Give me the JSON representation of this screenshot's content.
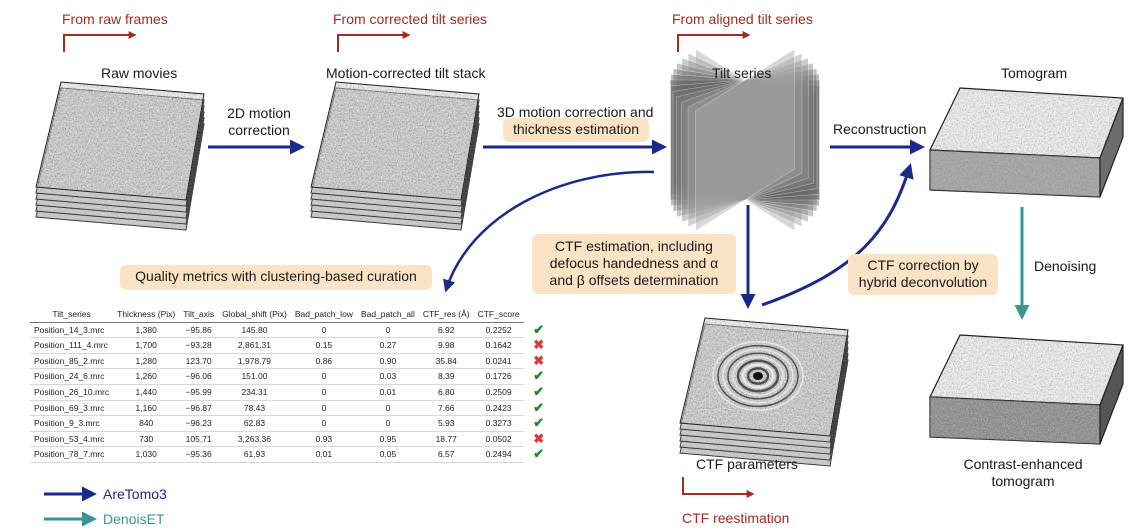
{
  "sources": {
    "raw": "From raw frames",
    "corrected": "From corrected tilt series",
    "aligned": "From aligned tilt series",
    "ctf_reest": "CTF reestimation"
  },
  "stages": {
    "raw_movies": "Raw movies",
    "motion_stack": "Motion-corrected tilt stack",
    "tilt_series": "Tilt series",
    "tomogram": "Tomogram",
    "ctf_params": "CTF parameters",
    "enhanced_line1": "Contrast-enhanced",
    "enhanced_line2": "tomogram"
  },
  "steps": {
    "motion2d_line1": "2D motion",
    "motion2d_line2": "correction",
    "motion3d_line1": "3D motion correction and",
    "motion3d_line2": "thickness estimation",
    "reconstruction": "Reconstruction",
    "denoising": "Denoising",
    "ctf_est_line1": "CTF estimation, including",
    "ctf_est_line2": "defocus handedness and α",
    "ctf_est_line3": "and β offsets determination",
    "ctf_corr_line1": "CTF correction by",
    "ctf_corr_line2": "hybrid deconvolution",
    "quality": "Quality metrics with clustering-based curation"
  },
  "table": {
    "headers": [
      "Tilt_series",
      "Thickness (Pix)",
      "Tilt_axis",
      "Global_shift (Pix)",
      "Bad_patch_low",
      "Bad_patch_all",
      "CTF_res (Å)",
      "CTF_score"
    ],
    "rows": [
      {
        "cells": [
          "Position_14_3.mrc",
          "1,380",
          "−95.86",
          "145.80",
          "0",
          "0",
          "6.92",
          "0.2252"
        ],
        "status": "accept"
      },
      {
        "cells": [
          "Position_111_4.mrc",
          "1,700",
          "−93.28",
          "2,861.31",
          "0.15",
          "0.27",
          "9.98",
          "0.1642"
        ],
        "status": "reject"
      },
      {
        "cells": [
          "Position_85_2.mrc",
          "1,280",
          "123.70",
          "1,978.79",
          "0.86",
          "0.90",
          "35.84",
          "0.0241"
        ],
        "status": "reject"
      },
      {
        "cells": [
          "Position_24_6.mrc",
          "1,260",
          "−96.06",
          "151.00",
          "0",
          "0.03",
          "8.39",
          "0.1726"
        ],
        "status": "accept"
      },
      {
        "cells": [
          "Position_26_10.mrc",
          "1,440",
          "−95.99",
          "234.31",
          "0",
          "0.01",
          "6.80",
          "0.2509"
        ],
        "status": "accept"
      },
      {
        "cells": [
          "Position_69_3.mrc",
          "1,160",
          "−96.87",
          "78.43",
          "0",
          "0",
          "7.66",
          "0.2423"
        ],
        "status": "accept"
      },
      {
        "cells": [
          "Position_9_3.mrc",
          "840",
          "−96.23",
          "62.83",
          "0",
          "0",
          "5.93",
          "0.3273"
        ],
        "status": "accept"
      },
      {
        "cells": [
          "Position_53_4.mrc",
          "730",
          "105.71",
          "3,263.36",
          "0.93",
          "0.95",
          "18.77",
          "0.0502"
        ],
        "status": "reject"
      },
      {
        "cells": [
          "Position_78_7.mrc",
          "1,030",
          "−95.36",
          "61.93",
          "0.01",
          "0.05",
          "6.57",
          "0.2494"
        ],
        "status": "accept"
      }
    ],
    "accept_mark": "✔",
    "reject_mark": "✖"
  },
  "legend": {
    "aretomo": "AreTomo3",
    "denoiset": "DenoisET"
  },
  "colors": {
    "aretomo_arrow": "#1a2a8c",
    "denoiset_arrow": "#3b9593",
    "source_red": "#a52a1f",
    "box_fill": "#fbe4c6",
    "accept": "#1f8a2c",
    "reject": "#d63b3b"
  }
}
